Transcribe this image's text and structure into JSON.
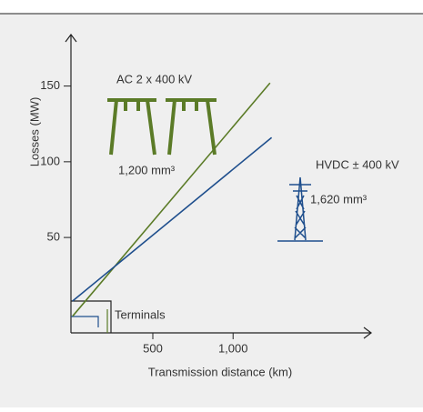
{
  "chart_data": {
    "type": "line",
    "xlabel": "Transmission distance (km)",
    "ylabel": "Losses (MW)",
    "xlim": [
      -10,
      1860
    ],
    "ylim": [
      -13,
      184
    ],
    "xticks": [
      500,
      {
        "value": 1000,
        "label": "1,000"
      }
    ],
    "yticks": [
      50,
      100,
      150
    ],
    "series": [
      {
        "name": "AC 2 x 400 kV",
        "color": "#5b7b27",
        "x": [
          0,
          1230
        ],
        "values": [
          -2,
          152
        ]
      },
      {
        "name": "HVDC ± 400 kV",
        "color": "#1f4f8d",
        "x": [
          0,
          1240
        ],
        "values": [
          8,
          116
        ]
      }
    ],
    "annotations": [
      "1,200 mm³",
      "1,620 mm³",
      "Terminals"
    ]
  }
}
